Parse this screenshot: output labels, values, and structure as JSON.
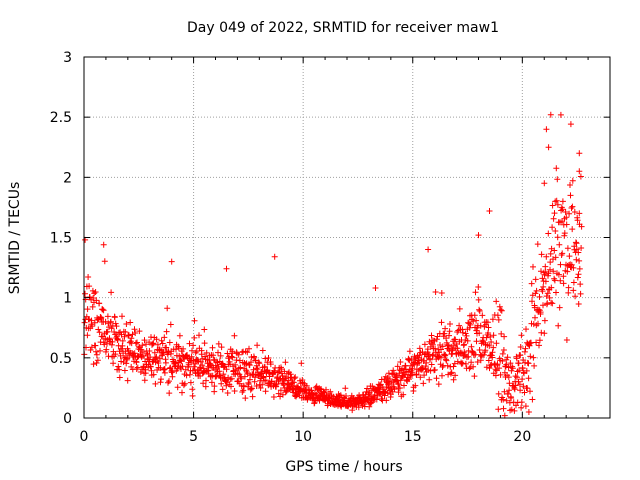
{
  "chart_data": {
    "type": "scatter",
    "title": "Day 049 of 2022, SRMTID for receiver maw1",
    "xlabel": "GPS time / hours",
    "ylabel": "SRMTID / TECUs",
    "xlim": [
      0,
      24
    ],
    "ylim": [
      0,
      3
    ],
    "xticks": [
      0,
      5,
      10,
      15,
      20
    ],
    "yticks": [
      0,
      0.5,
      1,
      1.5,
      2,
      2.5,
      3
    ],
    "xtick_labels": [
      "0",
      "5",
      "10",
      "15",
      "20"
    ],
    "ytick_labels": [
      "0",
      "0.5",
      "1",
      "1.5",
      "2",
      "2.5",
      "3"
    ],
    "grid": true,
    "marker": "plus",
    "series": [
      {
        "name": "SRMTID",
        "color": "#ff0000",
        "trend": [
          [
            0.0,
            0.85
          ],
          [
            0.5,
            0.78
          ],
          [
            1.0,
            0.72
          ],
          [
            1.5,
            0.62
          ],
          [
            2.0,
            0.55
          ],
          [
            3.0,
            0.5
          ],
          [
            4.0,
            0.47
          ],
          [
            5.0,
            0.44
          ],
          [
            6.0,
            0.42
          ],
          [
            7.0,
            0.4
          ],
          [
            8.0,
            0.37
          ],
          [
            9.0,
            0.3
          ],
          [
            10.0,
            0.22
          ],
          [
            11.0,
            0.17
          ],
          [
            12.0,
            0.12
          ],
          [
            13.0,
            0.17
          ],
          [
            14.0,
            0.28
          ],
          [
            15.0,
            0.38
          ],
          [
            16.0,
            0.5
          ],
          [
            17.0,
            0.6
          ],
          [
            18.0,
            0.65
          ],
          [
            18.8,
            0.55
          ],
          [
            19.4,
            0.3
          ],
          [
            20.0,
            0.35
          ],
          [
            20.5,
            0.7
          ],
          [
            21.0,
            1.05
          ],
          [
            21.5,
            1.45
          ],
          [
            22.0,
            1.35
          ],
          [
            22.7,
            1.25
          ]
        ],
        "highlights": [
          [
            0.05,
            1.48
          ],
          [
            0.9,
            1.44
          ],
          [
            4.0,
            1.3
          ],
          [
            6.5,
            1.24
          ],
          [
            8.7,
            1.34
          ],
          [
            13.3,
            1.08
          ],
          [
            15.7,
            1.4
          ],
          [
            18.0,
            1.52
          ],
          [
            18.5,
            1.72
          ],
          [
            19.2,
            0.02
          ],
          [
            20.3,
            0.05
          ],
          [
            21.0,
            1.95
          ],
          [
            21.1,
            2.4
          ],
          [
            21.3,
            2.52
          ],
          [
            21.2,
            2.25
          ],
          [
            21.5,
            1.8
          ],
          [
            21.8,
            1.75
          ],
          [
            22.2,
            1.85
          ],
          [
            22.6,
            2.2
          ],
          [
            22.6,
            2.05
          ],
          [
            22.6,
            1.7
          ]
        ]
      }
    ]
  }
}
